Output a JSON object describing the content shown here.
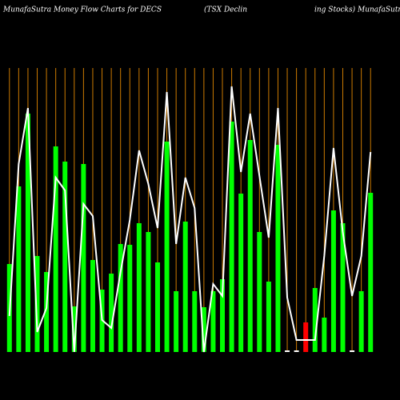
{
  "chart_data": {
    "type": "bar",
    "title": "MunafaSutra  Money Flow  Charts for DECS",
    "subtitle_left": "(TSX  Declin",
    "subtitle_right": "ing Stocks) MunafaSutra.com",
    "ylim": [
      0,
      360
    ],
    "bar_color": "#00ff00",
    "line_color": "#ffffff",
    "guide_color": "#cc7a00",
    "bar_colors": {
      "32": "#ff0000",
      "30": "#ffffff",
      "31": "#ffffff",
      "37": "#ffffff"
    },
    "values": [
      110,
      207,
      298,
      120,
      100,
      257,
      238,
      57,
      235,
      115,
      78,
      98,
      135,
      134,
      161,
      150,
      112,
      263,
      76,
      163,
      76,
      56,
      76,
      91,
      288,
      198,
      265,
      150,
      88,
      259,
      2,
      2,
      37,
      80,
      43,
      177,
      161,
      2,
      76,
      199
    ],
    "line_values": [
      45,
      235,
      305,
      25,
      55,
      218,
      202,
      0,
      185,
      170,
      40,
      30,
      100,
      165,
      252,
      210,
      155,
      325,
      135,
      218,
      180,
      0,
      85,
      70,
      332,
      225,
      298,
      220,
      143,
      305,
      68,
      15,
      15,
      15,
      120,
      255,
      150,
      70,
      120,
      250
    ]
  }
}
